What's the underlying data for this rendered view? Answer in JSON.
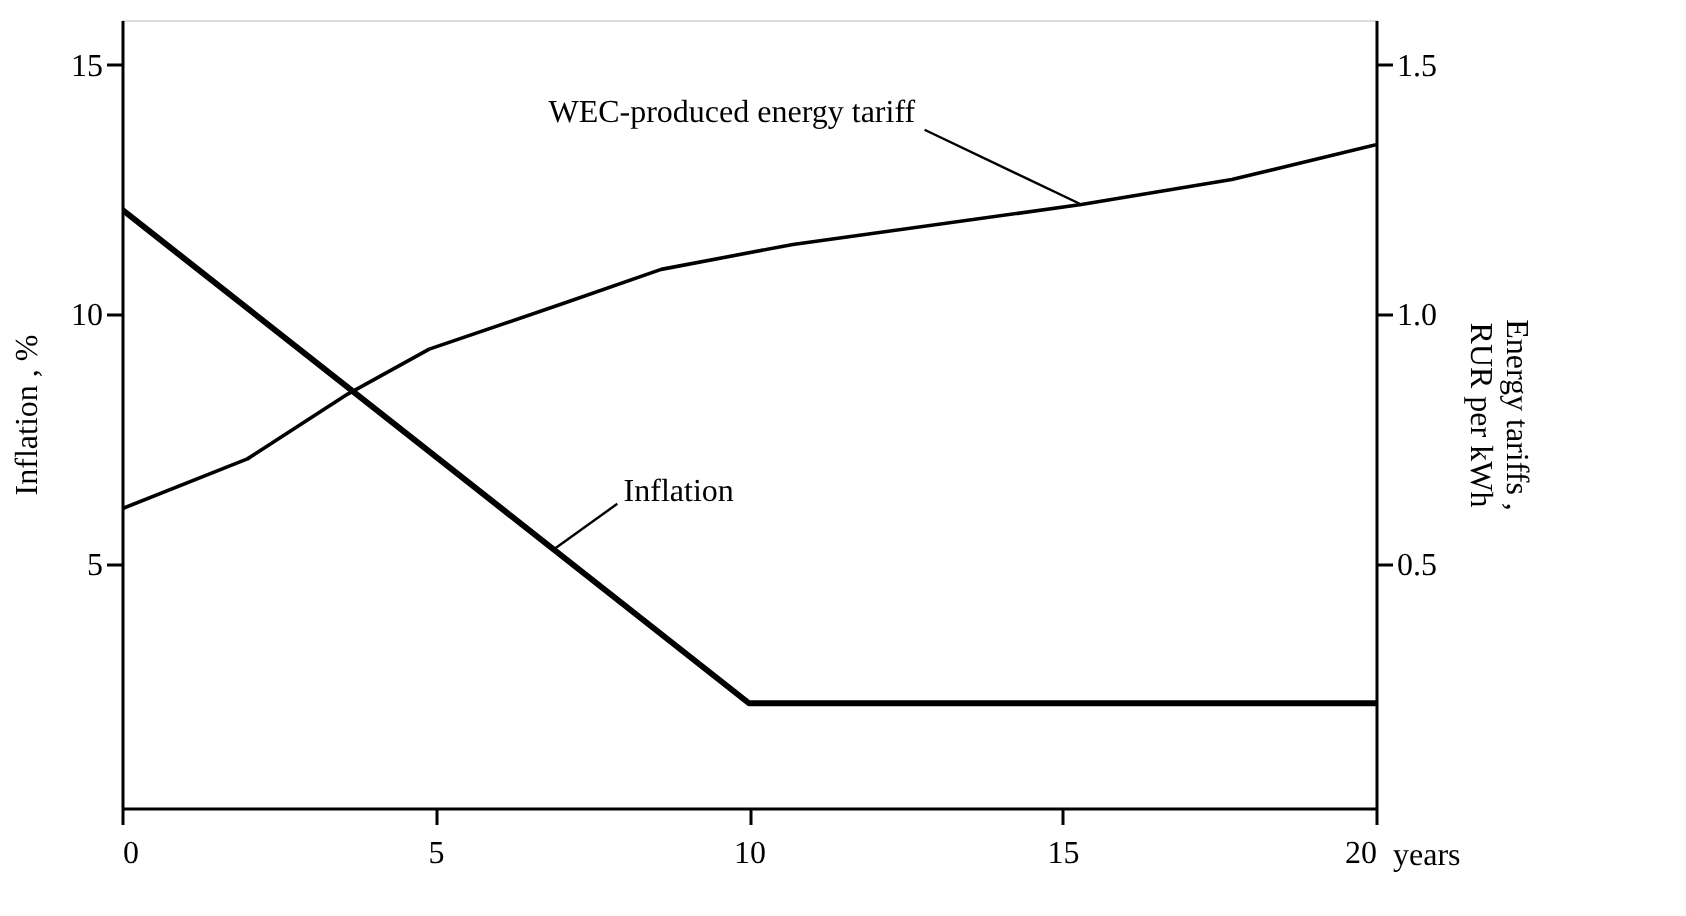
{
  "chart_data": {
    "type": "line",
    "xlabel": "years",
    "ylabel": "Inflation , %",
    "y2label": "Energy tariffs ,\nRUR per kWh",
    "xlim": [
      0,
      20
    ],
    "xticks": [
      0,
      5,
      10,
      15,
      20
    ],
    "ylim": [
      0.1,
      15.9
    ],
    "yticks": [
      5,
      10,
      15
    ],
    "y2lim": [
      0.01,
      1.59
    ],
    "y2ticks": [
      0.5,
      {
        "value": 1,
        "label": "1.0"
      },
      1.5
    ],
    "grid": false,
    "marker": "none",
    "line_style": "solid",
    "series": [
      {
        "color": "#000000",
        "x": [
          0,
          10,
          20
        ],
        "values": [
          12.1,
          2.2,
          2.2
        ]
      },
      {
        "color": "#000000",
        "axis": "y2",
        "x": [
          0,
          2,
          3.6,
          4.9,
          7,
          8.6,
          10.7,
          15.3,
          17.7,
          20
        ],
        "values": [
          0.61,
          0.71,
          0.84,
          0.93,
          1.02,
          1.09,
          1.14,
          1.22,
          1.27,
          1.34
        ]
      }
    ],
    "annotations": [
      {
        "text": "WEC-produced energy tariff",
        "x": 15.3,
        "y": 12.2
      },
      {
        "text": "Inflation",
        "x": 6.9,
        "y": 5.3
      }
    ]
  }
}
